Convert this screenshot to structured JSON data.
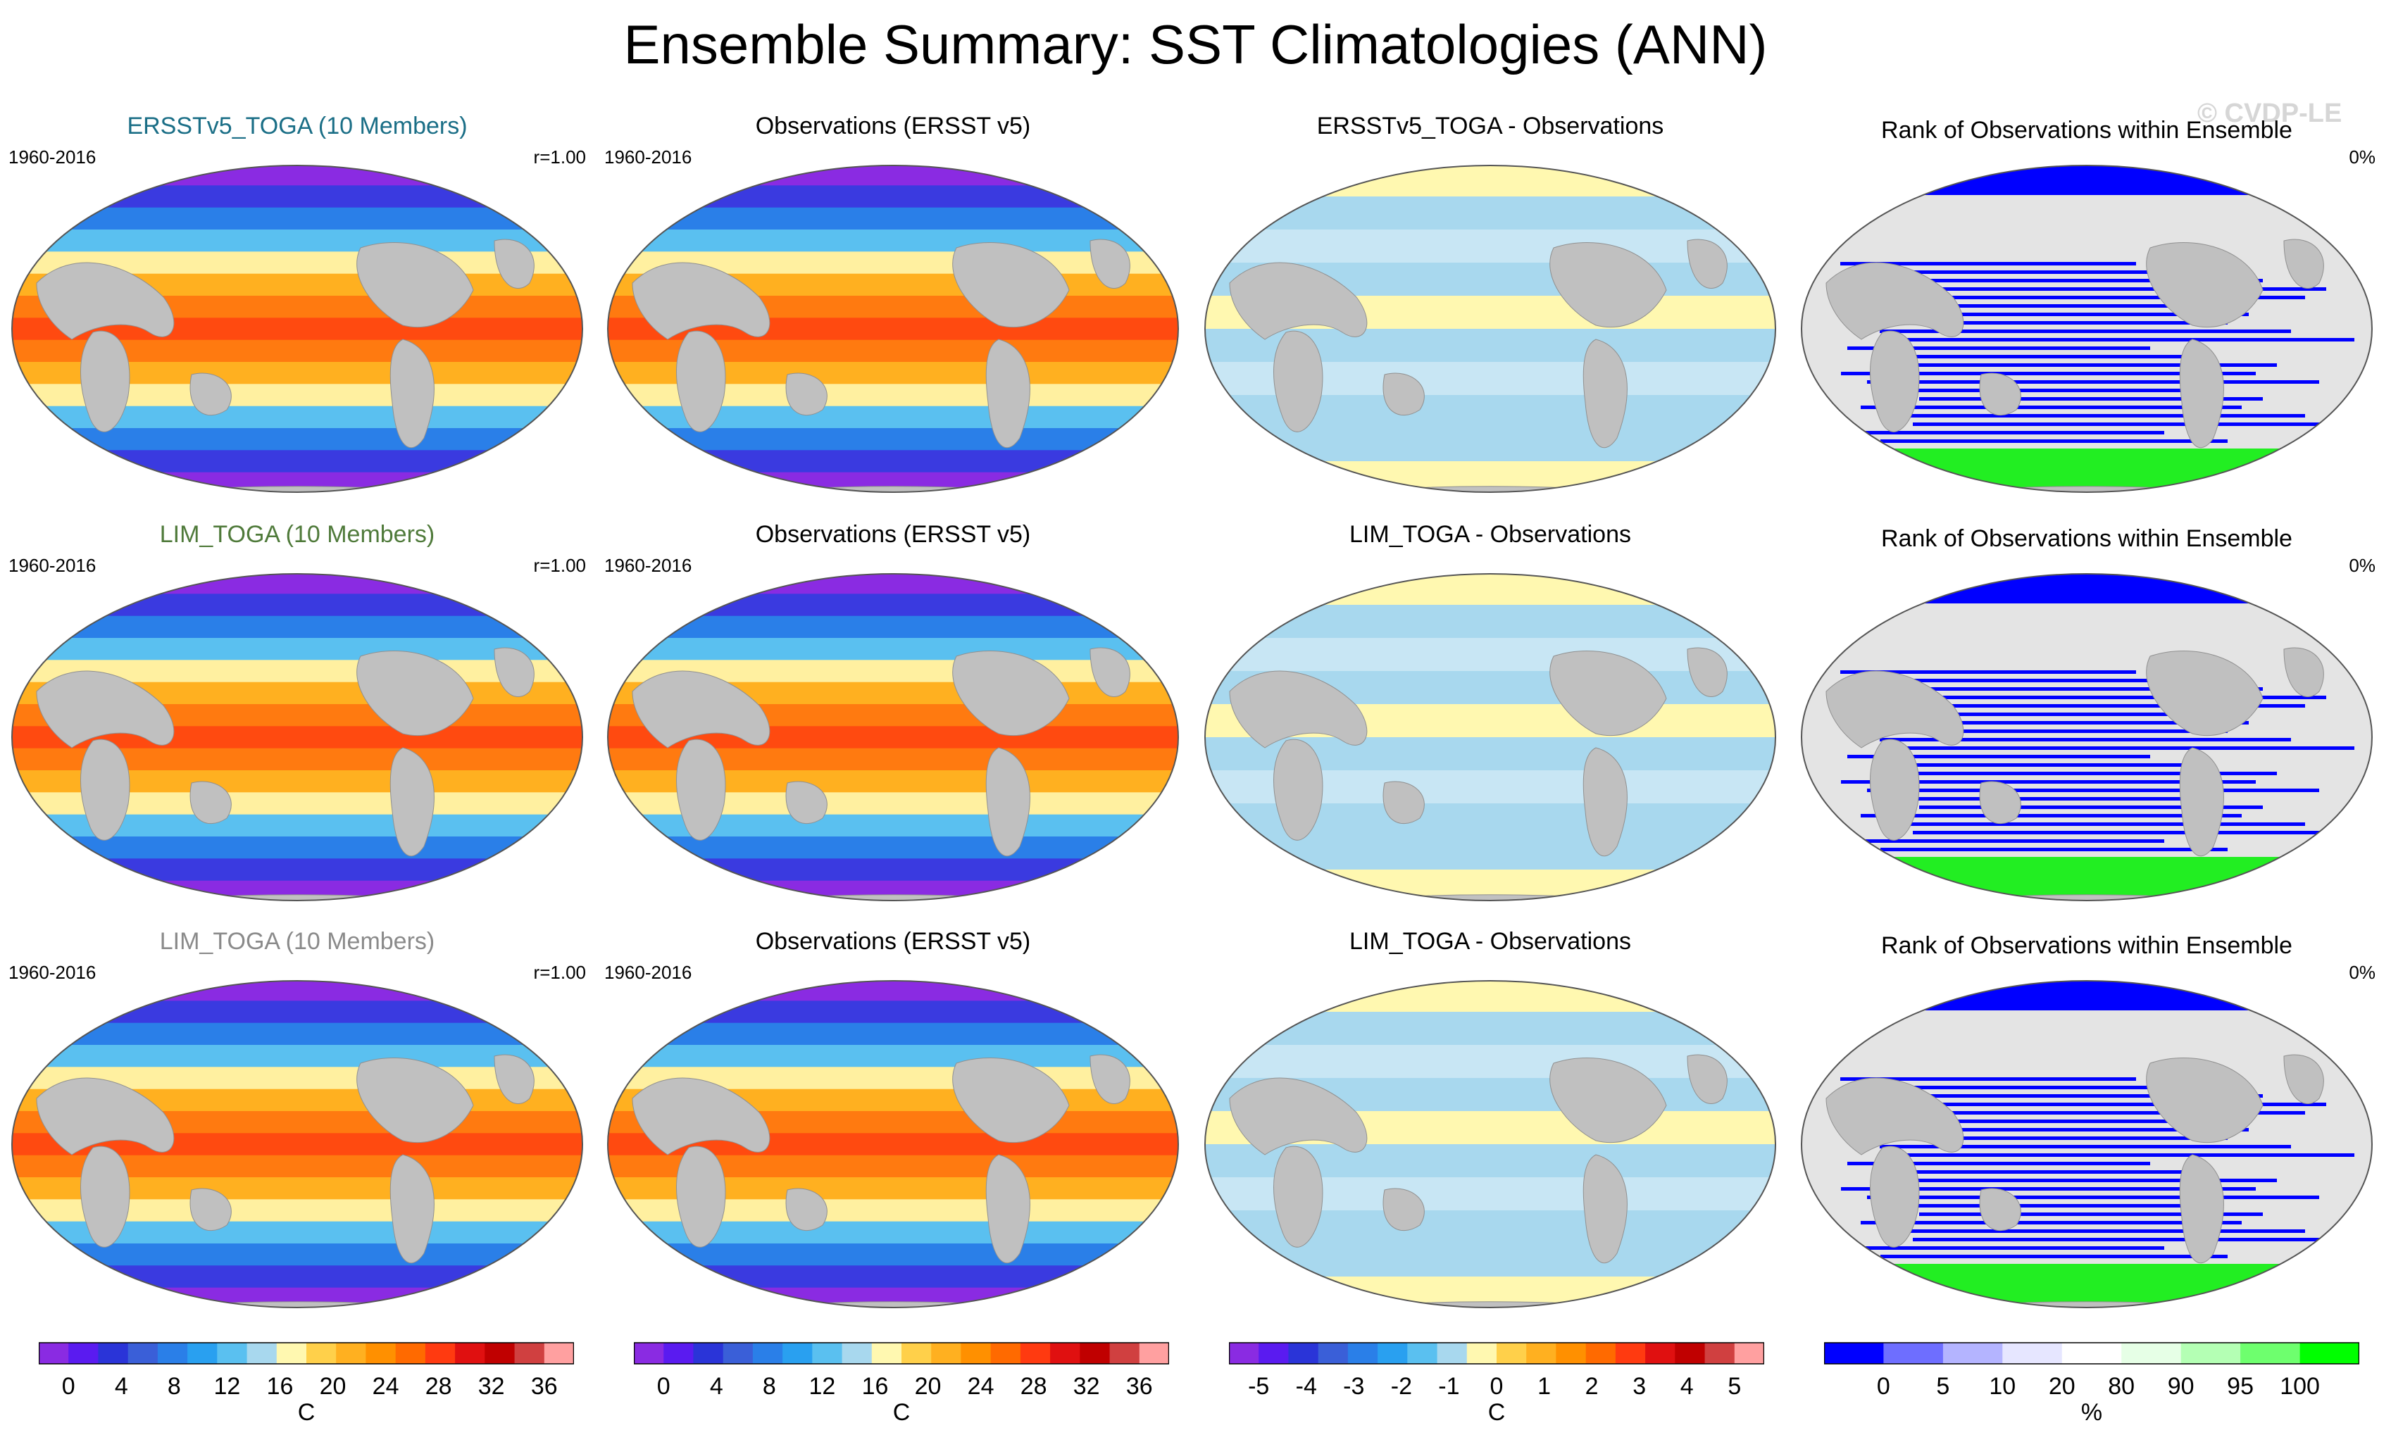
{
  "title": "Ensemble Summary: SST Climatologies (ANN)",
  "watermark": "© CVDP-LE",
  "rows": [
    {
      "panels": [
        {
          "kind": "mean",
          "title": "ERSSTv5_TOGA (10 Members)",
          "title_color": "#1a6e86",
          "left": "1960-2016",
          "right": "r=1.00"
        },
        {
          "kind": "obs",
          "title": "Observations (ERSST v5)",
          "title_color": "#000000",
          "left": "1960-2016",
          "right": ""
        },
        {
          "kind": "diff",
          "title": "ERSSTv5_TOGA - Observations",
          "title_color": "#000000",
          "left": "",
          "right": ""
        },
        {
          "kind": "rank",
          "title": "Rank of Observations within Ensemble",
          "title_color": "#000000",
          "left": "",
          "right": "0%"
        }
      ]
    },
    {
      "panels": [
        {
          "kind": "mean",
          "title": "LIM_TOGA (10 Members)",
          "title_color": "#4f7a3a",
          "left": "1960-2016",
          "right": "r=1.00"
        },
        {
          "kind": "obs",
          "title": "Observations (ERSST v5)",
          "title_color": "#000000",
          "left": "1960-2016",
          "right": ""
        },
        {
          "kind": "diff",
          "title": "LIM_TOGA - Observations",
          "title_color": "#000000",
          "left": "",
          "right": ""
        },
        {
          "kind": "rank",
          "title": "Rank of Observations within Ensemble",
          "title_color": "#000000",
          "left": "",
          "right": "0%"
        }
      ]
    },
    {
      "panels": [
        {
          "kind": "mean",
          "title": "LIM_TOGA (10 Members)",
          "title_color": "#8a8a8a",
          "left": "1960-2016",
          "right": "r=1.00"
        },
        {
          "kind": "obs",
          "title": "Observations (ERSST v5)",
          "title_color": "#000000",
          "left": "1960-2016",
          "right": ""
        },
        {
          "kind": "diff",
          "title": "LIM_TOGA - Observations",
          "title_color": "#000000",
          "left": "",
          "right": ""
        },
        {
          "kind": "rank",
          "title": "Rank of Observations within Ensemble",
          "title_color": "#000000",
          "left": "",
          "right": "0%"
        }
      ]
    }
  ],
  "colorbars": [
    {
      "name": "sst",
      "unit": "C",
      "ticks": [
        "0",
        "4",
        "8",
        "12",
        "16",
        "20",
        "24",
        "28",
        "32",
        "36"
      ],
      "colors": [
        "#8a2be2",
        "#5a1bf0",
        "#2a34d8",
        "#3a5fd8",
        "#2a7fe8",
        "#29a0f0",
        "#5ac0f0",
        "#a8d8ee",
        "#fff8b0",
        "#ffd04a",
        "#ffb020",
        "#ff9000",
        "#ff6a00",
        "#ff3a10",
        "#e01010",
        "#c00000",
        "#d04040",
        "#ffa0a0"
      ]
    },
    {
      "name": "sst-obs",
      "unit": "C",
      "ticks": [
        "0",
        "4",
        "8",
        "12",
        "16",
        "20",
        "24",
        "28",
        "32",
        "36"
      ],
      "colors": [
        "#8a2be2",
        "#5a1bf0",
        "#2a34d8",
        "#3a5fd8",
        "#2a7fe8",
        "#29a0f0",
        "#5ac0f0",
        "#a8d8ee",
        "#fff8b0",
        "#ffd04a",
        "#ffb020",
        "#ff9000",
        "#ff6a00",
        "#ff3a10",
        "#e01010",
        "#c00000",
        "#d04040",
        "#ffa0a0"
      ]
    },
    {
      "name": "diff",
      "unit": "C",
      "ticks": [
        "-5",
        "-4",
        "-3",
        "-2",
        "-1",
        "0",
        "1",
        "2",
        "3",
        "4",
        "5"
      ],
      "colors": [
        "#8a2be2",
        "#5a1bf0",
        "#2a34d8",
        "#3a5fd8",
        "#2a7fe8",
        "#29a0f0",
        "#5ac0f0",
        "#a8d8ee",
        "#fff8b0",
        "#ffd04a",
        "#ffb020",
        "#ff9000",
        "#ff6a00",
        "#ff3a10",
        "#e01010",
        "#c00000",
        "#d04040",
        "#ffa0a0"
      ]
    },
    {
      "name": "rank",
      "unit": "%",
      "ticks": [
        "0",
        "5",
        "10",
        "20",
        "80",
        "90",
        "95",
        "100"
      ],
      "colors": [
        "#0000ff",
        "#6e6eff",
        "#b4b4ff",
        "#e6e6ff",
        "#ffffff",
        "#e6ffe6",
        "#b4ffb4",
        "#6eff6e",
        "#00ff00"
      ]
    }
  ]
}
